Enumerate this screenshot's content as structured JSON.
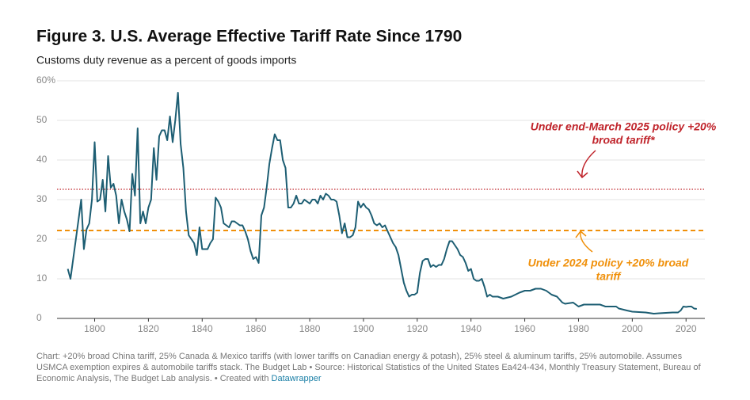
{
  "chart_data": {
    "type": "line",
    "title": "Figure 3. U.S. Average Effective Tariff Rate Since 1790",
    "subtitle": "Customs duty revenue as a percent of goods imports",
    "x": [
      1790,
      1791,
      1792,
      1793,
      1794,
      1795,
      1796,
      1797,
      1798,
      1799,
      1800,
      1801,
      1802,
      1803,
      1804,
      1805,
      1806,
      1807,
      1808,
      1809,
      1810,
      1811,
      1812,
      1813,
      1814,
      1815,
      1816,
      1817,
      1818,
      1819,
      1820,
      1821,
      1822,
      1823,
      1824,
      1825,
      1826,
      1827,
      1828,
      1829,
      1830,
      1831,
      1832,
      1833,
      1834,
      1835,
      1836,
      1837,
      1838,
      1839,
      1840,
      1841,
      1842,
      1843,
      1844,
      1845,
      1846,
      1847,
      1848,
      1849,
      1850,
      1851,
      1852,
      1853,
      1854,
      1855,
      1856,
      1857,
      1858,
      1859,
      1860,
      1861,
      1862,
      1863,
      1864,
      1865,
      1866,
      1867,
      1868,
      1869,
      1870,
      1871,
      1872,
      1873,
      1874,
      1875,
      1876,
      1877,
      1878,
      1879,
      1880,
      1881,
      1882,
      1883,
      1884,
      1885,
      1886,
      1887,
      1888,
      1889,
      1890,
      1891,
      1892,
      1893,
      1894,
      1895,
      1896,
      1897,
      1898,
      1899,
      1900,
      1901,
      1902,
      1903,
      1904,
      1905,
      1906,
      1907,
      1908,
      1909,
      1910,
      1911,
      1912,
      1913,
      1914,
      1915,
      1916,
      1917,
      1918,
      1919,
      1920,
      1921,
      1922,
      1923,
      1924,
      1925,
      1926,
      1927,
      1928,
      1929,
      1930,
      1931,
      1932,
      1933,
      1934,
      1935,
      1936,
      1937,
      1938,
      1939,
      1940,
      1941,
      1942,
      1943,
      1944,
      1945,
      1946,
      1947,
      1948,
      1950,
      1952,
      1955,
      1958,
      1960,
      1962,
      1964,
      1966,
      1968,
      1970,
      1972,
      1974,
      1975,
      1978,
      1980,
      1982,
      1985,
      1988,
      1990,
      1994,
      1995,
      1998,
      2000,
      2005,
      2008,
      2010,
      2015,
      2017,
      2018,
      2019,
      2020,
      2021,
      2022,
      2023,
      2024
    ],
    "series": [
      {
        "name": "Average effective tariff rate",
        "color": "#1d5e73",
        "values": [
          12.5,
          10,
          15,
          20,
          25,
          30,
          17.5,
          22.5,
          24,
          30,
          44.5,
          29.5,
          30,
          35,
          27,
          41,
          33,
          34,
          31,
          24,
          30,
          27,
          25,
          22,
          36.5,
          31,
          48,
          24,
          27,
          24,
          28,
          30,
          43,
          35,
          46,
          47.5,
          47.5,
          45,
          51,
          44.5,
          50,
          57,
          44,
          38,
          27,
          21,
          20,
          19,
          16,
          23,
          17.5,
          17.5,
          17.5,
          19,
          20,
          30.5,
          29.5,
          28,
          24,
          23.5,
          23,
          24.5,
          24.5,
          24,
          23.5,
          23.5,
          22,
          20,
          17,
          15,
          15.5,
          14,
          26,
          28,
          33,
          39,
          43,
          46.5,
          45,
          45,
          40,
          38,
          28,
          28,
          29,
          31,
          29,
          29,
          30,
          29.5,
          29,
          30,
          30,
          29,
          31,
          30,
          31.5,
          31,
          30,
          30,
          29.5,
          26,
          21.5,
          24,
          20.5,
          20.5,
          21,
          23,
          29.5,
          28,
          29,
          28,
          27.5,
          26,
          24,
          23.5,
          24,
          23,
          23.5,
          22,
          20.5,
          19,
          18,
          16,
          12.5,
          9,
          7,
          5.5,
          6,
          6,
          6.5,
          11.5,
          14.5,
          15,
          15,
          13,
          13.5,
          13,
          13.5,
          13.5,
          15,
          17.5,
          19.5,
          19.5,
          18.5,
          17.5,
          16,
          15.5,
          14,
          12,
          12.5,
          10,
          9.5,
          9.5,
          10,
          8,
          5.5,
          6,
          5.5,
          5.5,
          5,
          5.5,
          6.5,
          7,
          7,
          7.5,
          7.5,
          7,
          6,
          5.5,
          4,
          3.7,
          4,
          3,
          3.5,
          3.5,
          3.5,
          3,
          3,
          2.5,
          2,
          1.7,
          1.5,
          1.2,
          1.3,
          1.5,
          1.5,
          2,
          3,
          2.9,
          3,
          3,
          2.5,
          2.4
        ]
      }
    ],
    "xlim": [
      1786,
      2027
    ],
    "xticks": [
      1800,
      1820,
      1840,
      1860,
      1880,
      1900,
      1920,
      1940,
      1960,
      1980,
      2000,
      2020
    ],
    "ylim": [
      0,
      60
    ],
    "yticks": [
      0,
      10,
      20,
      30,
      40,
      50,
      {
        "value": 60,
        "label": "60%"
      }
    ],
    "grid": true,
    "reference_lines": [
      {
        "value": 32.6,
        "color": "#c0242b",
        "style": "dotted",
        "label": [
          "Under end-March 2025 policy +20%",
          "broad tariff*"
        ]
      },
      {
        "value": 22.2,
        "color": "#f0900a",
        "style": "dashed",
        "label": [
          "Under 2024 policy +20% broad",
          "tariff"
        ]
      }
    ],
    "notes": [
      "Chart:  +20% broad China tariff, 25% Canada & Mexico tariffs (with lower tariffs on Canadian energy & potash), 25% steel & aluminum tariffs, 25% automobile.  Assumes",
      "USMCA exemption expires & automobile tariffs stack. The Budget Lab • Source: Historical Statistics of the United States Ea424-434, Monthly Treasury Statement, Bureau of",
      "Economic Analysis, The Budget Lab analysis. • Created with "
    ],
    "credit": "Datawrapper"
  }
}
